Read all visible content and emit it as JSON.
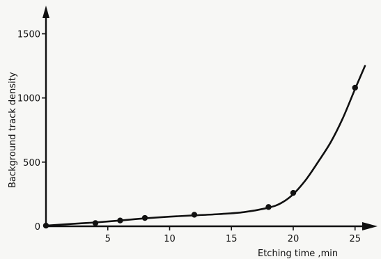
{
  "colors": {
    "ink": "#111111",
    "paper": "#f7f7f5"
  },
  "chart_data": {
    "type": "scatter",
    "title": "",
    "xlabel": "Etching time ,min",
    "ylabel": "Background track density",
    "xlim": [
      0,
      27
    ],
    "ylim": [
      0,
      1700
    ],
    "x_ticks": [
      5,
      10,
      15,
      20,
      25
    ],
    "y_ticks": [
      0,
      500,
      1000,
      1500
    ],
    "grid": false,
    "legend": "none",
    "series": [
      {
        "points": [
          {
            "x": 0,
            "y": 5
          },
          {
            "x": 4,
            "y": 25
          },
          {
            "x": 6,
            "y": 45
          },
          {
            "x": 8,
            "y": 65
          },
          {
            "x": 12,
            "y": 90
          },
          {
            "x": 18,
            "y": 150
          },
          {
            "x": 20,
            "y": 260
          },
          {
            "x": 25,
            "y": 1080
          }
        ]
      }
    ],
    "fit_curve": [
      {
        "x": 0,
        "y": 5
      },
      {
        "x": 2,
        "y": 18
      },
      {
        "x": 4,
        "y": 30
      },
      {
        "x": 6,
        "y": 45
      },
      {
        "x": 8,
        "y": 62
      },
      {
        "x": 10,
        "y": 75
      },
      {
        "x": 12,
        "y": 85
      },
      {
        "x": 14,
        "y": 95
      },
      {
        "x": 16,
        "y": 110
      },
      {
        "x": 18,
        "y": 145
      },
      {
        "x": 19,
        "y": 180
      },
      {
        "x": 20,
        "y": 250
      },
      {
        "x": 21,
        "y": 360
      },
      {
        "x": 22,
        "y": 500
      },
      {
        "x": 23,
        "y": 650
      },
      {
        "x": 24,
        "y": 840
      },
      {
        "x": 25,
        "y": 1070
      },
      {
        "x": 25.8,
        "y": 1250
      }
    ]
  }
}
